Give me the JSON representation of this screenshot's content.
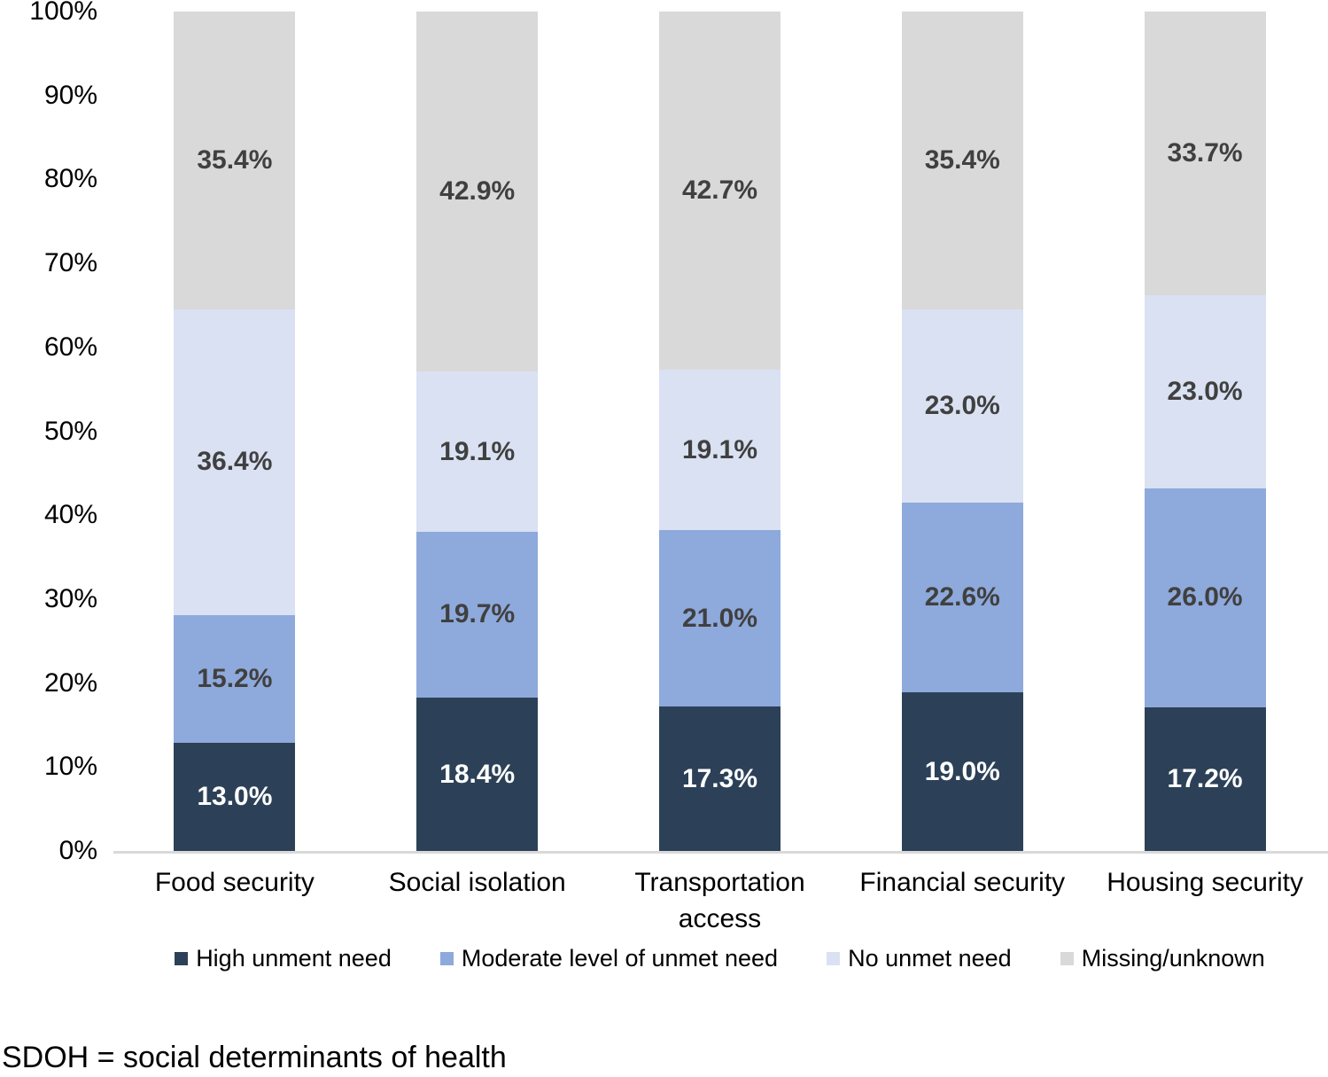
{
  "chart_data": {
    "type": "bar",
    "stacked": true,
    "title": "",
    "xlabel": "",
    "ylabel": "",
    "grid": false,
    "legend_position": "bottom",
    "categories": [
      "Food security",
      "Social isolation",
      "Transportation access",
      "Financial security",
      "Housing security"
    ],
    "series": [
      {
        "name": "High unment need",
        "color": "#2c4157",
        "label_color": "#ffffff",
        "values": [
          13.0,
          18.4,
          17.3,
          19.0,
          17.2
        ]
      },
      {
        "name": "Moderate level of unmet need",
        "color": "#8ea9db",
        "label_color": "#404040",
        "values": [
          15.2,
          19.7,
          21.0,
          22.6,
          26.0
        ]
      },
      {
        "name": "No unmet need",
        "color": "#d9e1f2",
        "label_color": "#404040",
        "values": [
          36.4,
          19.1,
          19.1,
          23.0,
          23.0
        ]
      },
      {
        "name": "Missing/unknown",
        "color": "#d9d9d9",
        "label_color": "#404040",
        "values": [
          35.4,
          42.9,
          42.7,
          35.4,
          33.7
        ]
      }
    ],
    "y_axis": {
      "min": 0,
      "max": 100,
      "step": 10,
      "tick_labels": [
        "0%",
        "10%",
        "20%",
        "30%",
        "40%",
        "50%",
        "60%",
        "70%",
        "80%",
        "90%",
        "100%"
      ]
    },
    "data_label_suffix": "%"
  },
  "colors": {
    "axis_line": "#d9d9d9",
    "axis_text": "#000000",
    "background": "#ffffff"
  },
  "footer": {
    "note": "SDOH = social determinants of health"
  }
}
